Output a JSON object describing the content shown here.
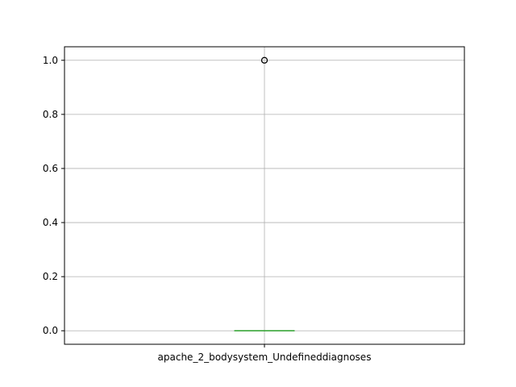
{
  "chart_data": {
    "type": "box",
    "title": "",
    "xlabel": "",
    "ylabel": "",
    "categories": [
      "apache_2_bodysystem_Undefineddiagnoses"
    ],
    "boxes": [
      {
        "category": "apache_2_bodysystem_Undefineddiagnoses",
        "q1": 0,
        "median": 0,
        "q3": 0,
        "whisker_low": 0,
        "whisker_high": 0,
        "outliers": [
          1.0
        ]
      }
    ],
    "ylim": [
      -0.05,
      1.05
    ],
    "yticks": [
      0.0,
      0.2,
      0.4,
      0.6,
      0.8,
      1.0
    ],
    "ytick_labels": [
      "0.0",
      "0.2",
      "0.4",
      "0.6",
      "0.8",
      "1.0"
    ],
    "grid": true,
    "colors": {
      "box": "#2ca02c",
      "median": "#2ca02c",
      "grid": "#b0b0b0",
      "axes": "#000000",
      "outlier": "#000000"
    }
  }
}
